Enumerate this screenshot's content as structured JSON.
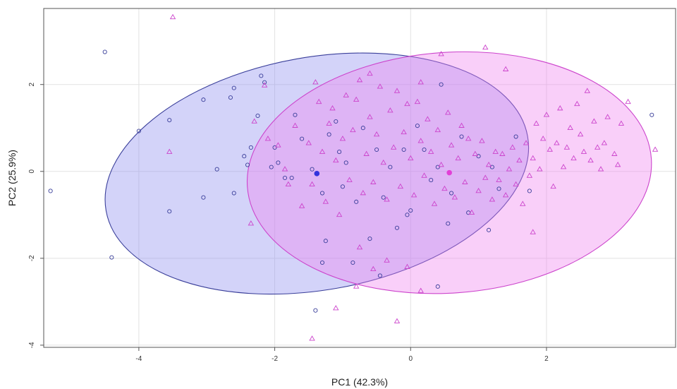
{
  "chart_data": {
    "type": "scatter",
    "xlabel": "PC1 (42.3%)",
    "ylabel": "PC2 (25.9%)",
    "xlim": [
      -5.4,
      3.9
    ],
    "ylim": [
      -4.05,
      3.75
    ],
    "xticks": [
      -4,
      -2,
      0,
      2
    ],
    "yticks": [
      -4,
      -2,
      0,
      2
    ],
    "xtick_labels": [
      "-4",
      "-2",
      "0",
      "2"
    ],
    "ytick_labels": [
      "-4",
      "-2",
      "0",
      "2"
    ],
    "grid": true,
    "legend": "none",
    "series": [
      {
        "marker": "circle",
        "color": "#3a3f9a",
        "fill": "#8c8cf0",
        "centroid": [
          -1.38,
          -0.05
        ],
        "ellipse": {
          "center": [
            -1.38,
            -0.05
          ],
          "rx": 3.15,
          "ry": 2.68,
          "angle_deg": -10
        },
        "points": [
          [
            -4.5,
            2.75
          ],
          [
            -5.3,
            -0.45
          ],
          [
            -4.4,
            -1.98
          ],
          [
            -4.0,
            0.93
          ],
          [
            -3.55,
            1.18
          ],
          [
            -3.55,
            -0.92
          ],
          [
            -3.05,
            1.65
          ],
          [
            -3.05,
            -0.6
          ],
          [
            -2.85,
            0.05
          ],
          [
            -2.65,
            1.7
          ],
          [
            -2.6,
            1.92
          ],
          [
            -2.6,
            -0.5
          ],
          [
            -2.45,
            0.35
          ],
          [
            -2.4,
            0.15
          ],
          [
            -2.35,
            0.55
          ],
          [
            -2.25,
            1.28
          ],
          [
            -2.2,
            2.2
          ],
          [
            -2.15,
            2.05
          ],
          [
            -2.05,
            0.1
          ],
          [
            -2.0,
            0.55
          ],
          [
            -1.95,
            0.2
          ],
          [
            -1.85,
            -0.15
          ],
          [
            -1.7,
            1.3
          ],
          [
            -1.6,
            0.75
          ],
          [
            -1.45,
            0.05
          ],
          [
            -1.3,
            -0.5
          ],
          [
            -1.25,
            -1.6
          ],
          [
            -1.2,
            0.85
          ],
          [
            -1.1,
            1.15
          ],
          [
            -1.05,
            0.45
          ],
          [
            -1.0,
            -0.35
          ],
          [
            -0.95,
            0.2
          ],
          [
            -0.85,
            -2.1
          ],
          [
            -0.8,
            -0.7
          ],
          [
            -0.7,
            1.0
          ],
          [
            -0.6,
            -1.55
          ],
          [
            -0.5,
            0.5
          ],
          [
            -0.4,
            -0.6
          ],
          [
            -0.3,
            0.1
          ],
          [
            -0.2,
            -1.3
          ],
          [
            -0.1,
            0.5
          ],
          [
            -0.05,
            -1.0
          ],
          [
            0.0,
            -0.9
          ],
          [
            0.1,
            1.05
          ],
          [
            0.2,
            0.5
          ],
          [
            0.3,
            -0.2
          ],
          [
            0.4,
            0.1
          ],
          [
            0.45,
            2.0
          ],
          [
            0.55,
            -1.2
          ],
          [
            0.6,
            -0.5
          ],
          [
            0.75,
            0.8
          ],
          [
            0.85,
            -0.95
          ],
          [
            1.0,
            0.35
          ],
          [
            1.15,
            -1.35
          ],
          [
            1.2,
            0.1
          ],
          [
            1.3,
            -0.4
          ],
          [
            1.55,
            0.8
          ],
          [
            1.75,
            -0.45
          ],
          [
            3.55,
            1.3
          ],
          [
            -1.4,
            -3.2
          ],
          [
            -1.3,
            -2.1
          ],
          [
            0.4,
            -2.65
          ],
          [
            -0.45,
            -2.4
          ],
          [
            -1.75,
            -0.15
          ]
        ]
      },
      {
        "marker": "triangle",
        "color": "#cc44cc",
        "fill": "#f080f0",
        "centroid": [
          0.57,
          -0.03
        ],
        "ellipse": {
          "center": [
            0.57,
            -0.03
          ],
          "rx": 2.98,
          "ry": 2.77,
          "angle_deg": -4
        },
        "points": [
          [
            -3.5,
            3.55
          ],
          [
            -3.55,
            0.45
          ],
          [
            -2.3,
            1.15
          ],
          [
            -2.15,
            1.98
          ],
          [
            -2.1,
            0.75
          ],
          [
            -2.35,
            -1.2
          ],
          [
            -1.95,
            0.6
          ],
          [
            -1.85,
            0.05
          ],
          [
            -1.8,
            -0.3
          ],
          [
            -1.7,
            1.05
          ],
          [
            -1.6,
            -0.8
          ],
          [
            -1.5,
            0.65
          ],
          [
            -1.45,
            -0.3
          ],
          [
            -1.4,
            2.05
          ],
          [
            -1.35,
            1.6
          ],
          [
            -1.3,
            0.45
          ],
          [
            -1.25,
            -0.7
          ],
          [
            -1.2,
            1.1
          ],
          [
            -1.15,
            1.45
          ],
          [
            -1.1,
            0.25
          ],
          [
            -1.05,
            -1.0
          ],
          [
            -1.0,
            0.75
          ],
          [
            -0.95,
            1.75
          ],
          [
            -0.9,
            -0.2
          ],
          [
            -0.85,
            0.95
          ],
          [
            -0.8,
            1.65
          ],
          [
            -0.75,
            2.1
          ],
          [
            -0.7,
            -0.5
          ],
          [
            -0.65,
            0.4
          ],
          [
            -0.6,
            1.25
          ],
          [
            -0.55,
            -0.25
          ],
          [
            -0.5,
            0.85
          ],
          [
            -0.45,
            1.95
          ],
          [
            -0.4,
            0.2
          ],
          [
            -0.35,
            -0.65
          ],
          [
            -0.3,
            1.4
          ],
          [
            -0.25,
            0.55
          ],
          [
            -0.2,
            1.85
          ],
          [
            -0.15,
            -0.35
          ],
          [
            -0.1,
            0.9
          ],
          [
            -0.05,
            1.55
          ],
          [
            0.0,
            0.3
          ],
          [
            0.05,
            -0.55
          ],
          [
            0.1,
            1.6
          ],
          [
            0.15,
            0.7
          ],
          [
            0.2,
            -0.1
          ],
          [
            0.25,
            1.2
          ],
          [
            0.3,
            0.45
          ],
          [
            0.35,
            -0.75
          ],
          [
            0.4,
            0.95
          ],
          [
            0.45,
            0.15
          ],
          [
            0.5,
            -0.4
          ],
          [
            0.55,
            1.35
          ],
          [
            0.6,
            0.6
          ],
          [
            0.65,
            -0.6
          ],
          [
            0.7,
            0.3
          ],
          [
            0.75,
            1.05
          ],
          [
            0.8,
            -0.25
          ],
          [
            0.85,
            0.75
          ],
          [
            0.9,
            -0.95
          ],
          [
            0.95,
            0.4
          ],
          [
            1.0,
            -0.45
          ],
          [
            1.05,
            0.7
          ],
          [
            1.1,
            -0.15
          ],
          [
            1.15,
            0.15
          ],
          [
            1.2,
            -0.65
          ],
          [
            1.25,
            0.45
          ],
          [
            1.3,
            -0.2
          ],
          [
            1.35,
            0.4
          ],
          [
            1.4,
            -0.55
          ],
          [
            1.45,
            0.05
          ],
          [
            1.5,
            0.55
          ],
          [
            1.55,
            -0.3
          ],
          [
            1.6,
            0.25
          ],
          [
            1.65,
            -0.75
          ],
          [
            1.7,
            0.65
          ],
          [
            1.75,
            -0.1
          ],
          [
            1.8,
            0.3
          ],
          [
            1.85,
            1.1
          ],
          [
            1.9,
            0.05
          ],
          [
            1.95,
            0.75
          ],
          [
            2.0,
            1.3
          ],
          [
            2.05,
            0.5
          ],
          [
            2.1,
            -0.35
          ],
          [
            2.15,
            0.65
          ],
          [
            2.2,
            1.45
          ],
          [
            2.25,
            0.1
          ],
          [
            2.3,
            0.55
          ],
          [
            2.35,
            1.0
          ],
          [
            2.4,
            0.3
          ],
          [
            2.45,
            1.55
          ],
          [
            2.5,
            0.85
          ],
          [
            2.55,
            0.45
          ],
          [
            2.6,
            1.85
          ],
          [
            2.65,
            0.25
          ],
          [
            2.7,
            1.15
          ],
          [
            2.75,
            0.55
          ],
          [
            2.8,
            0.05
          ],
          [
            2.85,
            0.65
          ],
          [
            2.9,
            1.25
          ],
          [
            3.0,
            0.4
          ],
          [
            3.05,
            0.15
          ],
          [
            3.1,
            1.1
          ],
          [
            3.2,
            1.6
          ],
          [
            3.6,
            0.5
          ],
          [
            1.1,
            2.85
          ],
          [
            0.45,
            2.7
          ],
          [
            1.4,
            2.35
          ],
          [
            -0.6,
            2.25
          ],
          [
            0.15,
            2.05
          ],
          [
            -1.45,
            -3.85
          ],
          [
            -1.1,
            -3.15
          ],
          [
            -0.2,
            -3.45
          ],
          [
            0.15,
            -2.75
          ],
          [
            -0.8,
            -2.65
          ],
          [
            -0.55,
            -2.25
          ],
          [
            -0.35,
            -2.05
          ],
          [
            -0.05,
            -2.2
          ],
          [
            -0.75,
            -1.75
          ],
          [
            1.8,
            -1.4
          ]
        ]
      }
    ]
  }
}
